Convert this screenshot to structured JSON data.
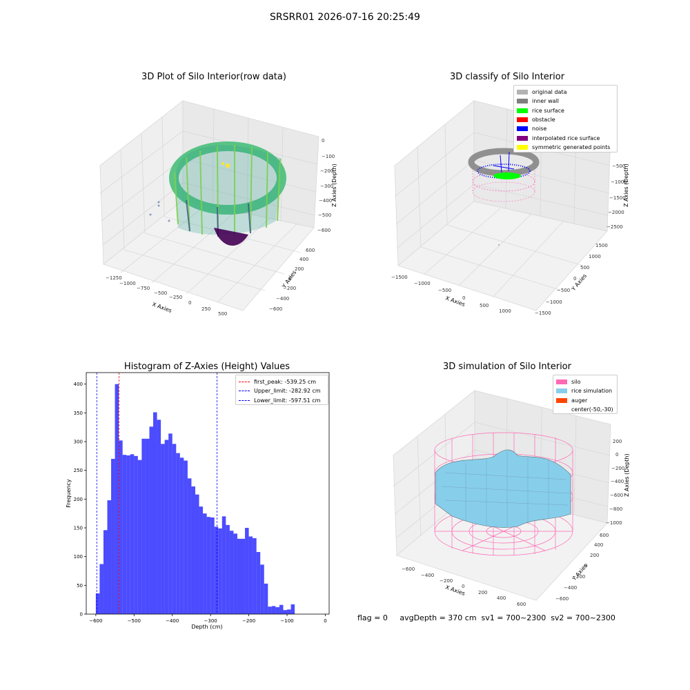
{
  "figure": {
    "suptitle": "SRSRR01 2026-07-16 20:25:49",
    "footer": "flag = 0     avgDepth = 370 cm  sv1 = 700~2300  sv2 = 700~2300"
  },
  "panels": {
    "raw": {
      "title": "3D Plot of Silo Interior(row data)",
      "xlabel": "X Axies",
      "ylabel": "Y Axies",
      "zlabel": "Z Axies (Depth)",
      "xticks": [
        "−1250",
        "−1000",
        "−750",
        "−500",
        "−250",
        "0",
        "250",
        "500"
      ],
      "yticks": [
        "−600",
        "−400",
        "−200",
        "0",
        "200",
        "400",
        "600"
      ],
      "zticks": [
        "0",
        "−100",
        "−200",
        "−300",
        "−400",
        "−500",
        "−600"
      ]
    },
    "classify": {
      "title": "3D classify of Silo Interior",
      "xlabel": "X Axies",
      "ylabel": "Y Axies",
      "zlabel": "Z Axies (Depth)",
      "xticks": [
        "−1500",
        "−1000",
        "−500",
        "0",
        "500",
        "1000"
      ],
      "yticks": [
        "−1500",
        "−1000",
        "−500",
        "0",
        "500",
        "1000",
        "1500"
      ],
      "zticks": [
        "−500",
        "−1000",
        "−1500",
        "−2000",
        "−2500"
      ],
      "legend": [
        {
          "label": "original data",
          "color": "#b3b3b3"
        },
        {
          "label": "inner wall",
          "color": "#808080"
        },
        {
          "label": "rice surface",
          "color": "#00ff00"
        },
        {
          "label": "obstacle",
          "color": "#ff0000"
        },
        {
          "label": "noise",
          "color": "#0000ff"
        },
        {
          "label": "interpolated rice surface",
          "color": "#800080"
        },
        {
          "label": "symmetric generated points",
          "color": "#ffff00"
        }
      ]
    },
    "simulation": {
      "title": "3D simulation of Silo Interior",
      "xlabel": "X Axies",
      "ylabel": "Y Axies",
      "zlabel": "Z Axies (Depth)",
      "xticks": [
        "−600",
        "−400",
        "−200",
        "0",
        "200",
        "400",
        "600"
      ],
      "yticks": [
        "−600",
        "−400",
        "−200",
        "0",
        "200",
        "400",
        "600"
      ],
      "zticks": [
        "200",
        "0",
        "−200",
        "−400",
        "−600",
        "−800",
        "−1000"
      ],
      "legend": [
        {
          "label": "silo",
          "color": "#ff69b4"
        },
        {
          "label": "rice simulation",
          "color": "#87ceeb"
        },
        {
          "label": "auger",
          "color": "#ff4500"
        },
        {
          "label": "center(-50,-30)",
          "color": ""
        }
      ]
    }
  },
  "chart_data": {
    "type": "bar",
    "title": "Histogram of Z-Axies (Height) Values",
    "xlabel": "Depth (cm)",
    "ylabel": "Frequency",
    "xlim": [
      -625,
      10
    ],
    "ylim": [
      0,
      420
    ],
    "bar_color": "#0000ff",
    "bin_width": 10,
    "xticks": [
      -600,
      -500,
      -400,
      -300,
      -200,
      -100,
      0
    ],
    "yticks": [
      0,
      50,
      100,
      150,
      200,
      250,
      300,
      350,
      400
    ],
    "bins": [
      -600,
      -590,
      -580,
      -570,
      -560,
      -550,
      -540,
      -530,
      -520,
      -510,
      -500,
      -490,
      -480,
      -470,
      -460,
      -450,
      -440,
      -430,
      -420,
      -410,
      -400,
      -390,
      -380,
      -370,
      -360,
      -350,
      -340,
      -330,
      -320,
      -310,
      -300,
      -290,
      -280,
      -270,
      -260,
      -250,
      -240,
      -230,
      -220,
      -210,
      -200,
      -190,
      -180,
      -170,
      -160,
      -150,
      -140,
      -130,
      -120,
      -110,
      -100,
      -90,
      -80,
      -70,
      -60,
      -50,
      -40,
      -30,
      -20,
      -10
    ],
    "values": [
      36,
      87,
      146,
      198,
      270,
      400,
      302,
      277,
      276,
      278,
      275,
      268,
      305,
      305,
      326,
      351,
      338,
      296,
      303,
      314,
      296,
      280,
      272,
      267,
      236,
      222,
      208,
      187,
      175,
      169,
      168,
      152,
      149,
      170,
      155,
      145,
      140,
      131,
      131,
      150,
      135,
      132,
      108,
      86,
      53,
      13,
      14,
      12,
      16,
      7,
      8,
      17,
      0,
      0,
      0,
      0,
      0,
      0,
      0,
      0
    ],
    "vlines": [
      {
        "x": -539.25,
        "color": "#ff0000",
        "label": "first_peak: -539.25 cm"
      },
      {
        "x": -282.92,
        "color": "#0000ff",
        "label": "Upper_limit: -282.92 cm"
      },
      {
        "x": -597.51,
        "color": "#0000ff",
        "label": "Lower_limit: -597.51 cm"
      }
    ],
    "legend_position": "top-right"
  }
}
